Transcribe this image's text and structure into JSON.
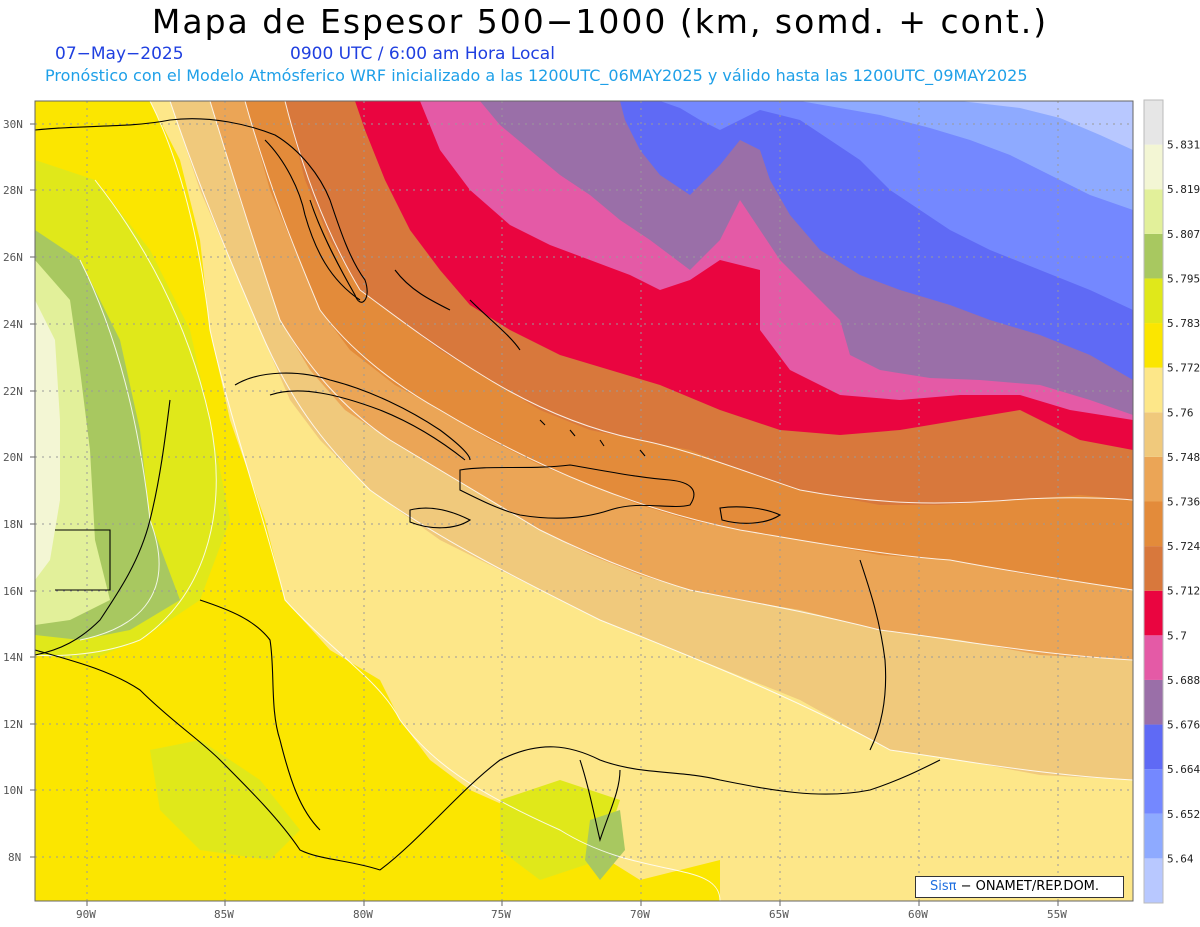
{
  "title": "Mapa de Espesor 500−1000 (km, somd. + cont.)",
  "date": "07−May−2025",
  "time": "0900 UTC / 6:00 am Hora Local",
  "model_line": "Pronóstico con el Modelo Atmósferico WRF inicializado a las 1200UTC_06MAY2025 y válido hasta las  1200UTC_09MAY2025",
  "credit": {
    "logo_text": "Sisπ",
    "org": "− ONAMET/REP.DOM."
  },
  "lat_labels": [
    "30N",
    "28N",
    "26N",
    "24N",
    "22N",
    "20N",
    "18N",
    "16N",
    "14N",
    "12N",
    "10N",
    "8N"
  ],
  "lon_labels": [
    "90W",
    "85W",
    "80W",
    "75W",
    "70W",
    "65W",
    "60W",
    "55W"
  ],
  "colorbar": {
    "colors": [
      "#b8c8ff",
      "#8eaaff",
      "#7488ff",
      "#5f6af5",
      "#9a6fa8",
      "#e45aa6",
      "#ea0540",
      "#d8783c",
      "#e38b3a",
      "#eba556",
      "#f0c97c",
      "#fde789",
      "#fbe600",
      "#e0e81a",
      "#a8c860",
      "#e2f09a",
      "#f3f6d4",
      "#e6e6e6"
    ],
    "labels": [
      "5.64",
      "5.652",
      "5.664",
      "5.676",
      "5.688",
      "5.7",
      "5.712",
      "5.724",
      "5.736",
      "5.748",
      "5.76",
      "5.772",
      "5.783",
      "5.795",
      "5.807",
      "5.819",
      "5.831"
    ]
  }
}
